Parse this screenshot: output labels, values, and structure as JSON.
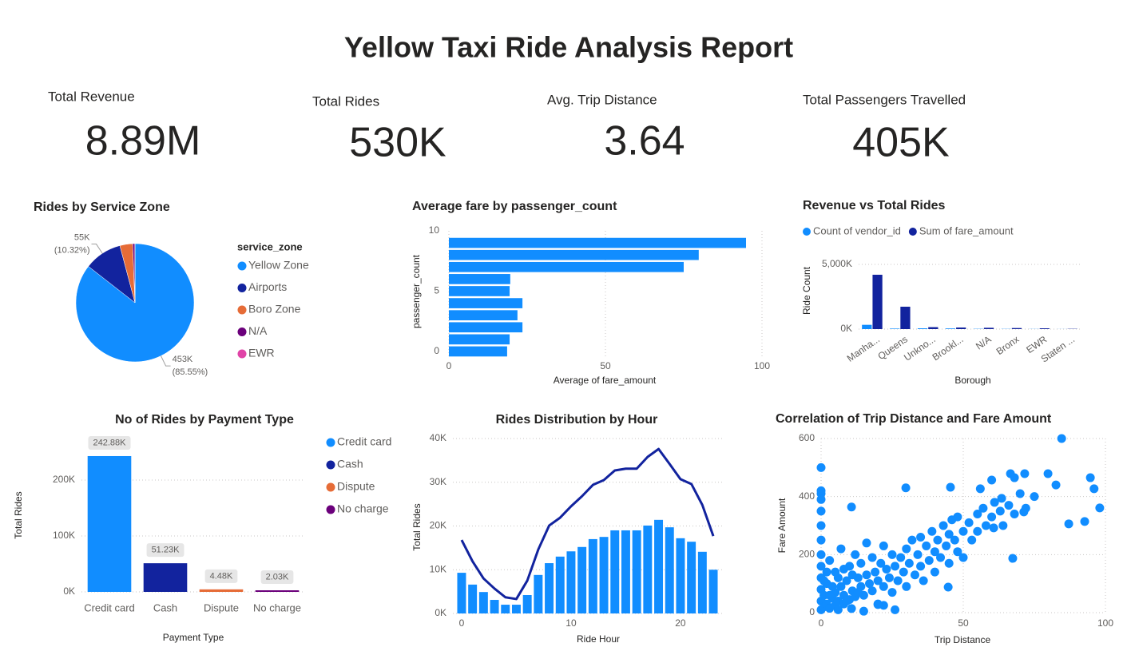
{
  "title": "Yellow Taxi Ride Analysis Report",
  "kpis": [
    {
      "label": "Total Revenue",
      "value": "8.89M"
    },
    {
      "label": "Total Rides",
      "value": "530K"
    },
    {
      "label": "Avg. Trip Distance",
      "value": "3.64"
    },
    {
      "label": "Total Passengers Travelled",
      "value": "405K"
    }
  ],
  "chart_data": [
    {
      "type": "pie",
      "title": "Rides by Service Zone",
      "legend_title": "service_zone",
      "legend": "right",
      "categories": [
        "Yellow Zone",
        "Airports",
        "Boro Zone",
        "N/A",
        "EWR"
      ],
      "values": [
        453000,
        54650,
        18500,
        3200,
        150
      ],
      "value_labels": [
        "453K",
        "55K",
        null,
        null,
        null
      ],
      "percent_labels": [
        "(85.55%)",
        "(10.32%)",
        null,
        null,
        null
      ],
      "colors": [
        "#118dff",
        "#12239e",
        "#e66c37",
        "#6b007b",
        "#e044a7"
      ]
    },
    {
      "type": "hbar",
      "title": "Average fare by passenger_count",
      "xlabel": "Average of fare_amount",
      "ylabel": "passenger_count",
      "categories": [
        0,
        1,
        2,
        3,
        4,
        5,
        6,
        7,
        8,
        9
      ],
      "values": [
        18.6,
        19.4,
        23.5,
        21.9,
        23.5,
        19.4,
        19.6,
        75,
        79.8,
        94.9
      ],
      "color": "#118dff",
      "xlim": [
        0,
        100
      ],
      "xticks": [
        0,
        50,
        100
      ],
      "ylim": [
        -0.5,
        10
      ],
      "yticks": [
        0,
        5,
        10
      ],
      "grid": true
    },
    {
      "type": "grouped_bar",
      "title": "Revenue vs Total Rides",
      "xlabel": "Borough",
      "ylabel": "Ride Count",
      "legend": "top-left",
      "categories": [
        "Manha...",
        "Queens",
        "Unkno...",
        "Brookl...",
        "N/A",
        "Bronx",
        "EWR",
        "Staten ..."
      ],
      "series": [
        {
          "name": "Count of vendor_id",
          "color": "#118dff",
          "values": [
            330000,
            40000,
            60000,
            50000,
            20000,
            15000,
            10000,
            5000
          ]
        },
        {
          "name": "Sum of fare_amount",
          "color": "#12239e",
          "values": [
            4200000,
            1730000,
            150000,
            120000,
            100000,
            80000,
            60000,
            20000
          ]
        }
      ],
      "ylim": [
        0,
        5000000
      ],
      "yticks": [
        {
          "value": 0,
          "label": "0K"
        },
        {
          "value": 5000000,
          "label": "5,000K"
        }
      ],
      "grid": true
    },
    {
      "type": "bar",
      "title": "No of Rides by Payment Type",
      "xlabel": "Payment Type",
      "ylabel": "Total Rides",
      "legend": "right",
      "categories": [
        "Credit card",
        "Cash",
        "Dispute",
        "No charge"
      ],
      "values": [
        242880,
        51230,
        4480,
        2030
      ],
      "value_labels": [
        "242.88K",
        "51.23K",
        "4.48K",
        "2.03K"
      ],
      "colors": [
        "#118dff",
        "#12239e",
        "#e66c37",
        "#6b007b"
      ],
      "ylim": [
        0,
        280000
      ],
      "yticks": [
        {
          "value": 0,
          "label": "0K"
        },
        {
          "value": 100000,
          "label": "100K"
        },
        {
          "value": 200000,
          "label": "200K"
        }
      ],
      "grid": true
    },
    {
      "type": "combo",
      "title": "Rides Distribution by Hour",
      "xlabel": "Ride Hour",
      "ylabel": "Total Rides",
      "x": [
        0,
        1,
        2,
        3,
        4,
        5,
        6,
        7,
        8,
        9,
        10,
        11,
        12,
        13,
        14,
        15,
        16,
        17,
        18,
        19,
        20,
        21,
        22,
        23
      ],
      "series": [
        {
          "kind": "bar",
          "color": "#118dff",
          "values": [
            9300,
            6600,
            4900,
            3100,
            2000,
            2000,
            4200,
            8800,
            11500,
            13000,
            14200,
            15200,
            17000,
            17500,
            19000,
            19000,
            19000,
            20100,
            21400,
            19700,
            17200,
            16400,
            14100,
            10000
          ]
        },
        {
          "kind": "line",
          "color": "#12239e",
          "values": [
            16800,
            11900,
            8000,
            5700,
            3700,
            3300,
            7500,
            14600,
            20100,
            21900,
            24500,
            26800,
            29400,
            30500,
            32700,
            33100,
            33100,
            35800,
            37600,
            34200,
            30700,
            29600,
            24800,
            17700
          ]
        }
      ],
      "xlim": [
        -0.8,
        23.8
      ],
      "xticks": [
        0,
        10,
        20
      ],
      "ylim": [
        0,
        40000
      ],
      "yticks": [
        {
          "value": 0,
          "label": "0K"
        },
        {
          "value": 10000,
          "label": "10K"
        },
        {
          "value": 20000,
          "label": "20K"
        },
        {
          "value": 30000,
          "label": "30K"
        },
        {
          "value": 40000,
          "label": "40K"
        }
      ],
      "grid": true
    },
    {
      "type": "scatter",
      "title": "Correlation of Trip Distance and Fare Amount",
      "xlabel": "Trip Distance",
      "ylabel": "Fare Amount",
      "color": "#118dff",
      "x": [
        0,
        0,
        0,
        0,
        0,
        0,
        0,
        0,
        0,
        0,
        1,
        1,
        2,
        2,
        3,
        3,
        4,
        5,
        5,
        5,
        6,
        7,
        7,
        8,
        8,
        9,
        10,
        10,
        11,
        12,
        12,
        13,
        14,
        14,
        15,
        16,
        16,
        17,
        18,
        18,
        19,
        20,
        20,
        21,
        22,
        22,
        23,
        24,
        25,
        25,
        26,
        27,
        28,
        29,
        30,
        30,
        31,
        32,
        33,
        34,
        35,
        35,
        36,
        37,
        38,
        39,
        40,
        40,
        41,
        42,
        43,
        44,
        45,
        45,
        46,
        47,
        48,
        48,
        50,
        50,
        52,
        53,
        55,
        55,
        57,
        58,
        60,
        61,
        63,
        64,
        66,
        68,
        70,
        72,
        75,
        22,
        26,
        15,
        84.6,
        0,
        45.5,
        56,
        60,
        66.6,
        68,
        71.6,
        79.8,
        82.6,
        94.7,
        96,
        98,
        92.7,
        87.1,
        71.3,
        67.4,
        60.7,
        63.5,
        10.7,
        29.8,
        44.7,
        10.7,
        20,
        0,
        0,
        3,
        4,
        6,
        2,
        8,
        9,
        11,
        13,
        6,
        1
      ],
      "values": [
        10,
        40,
        80,
        120,
        160,
        200,
        250,
        300,
        350,
        410,
        60,
        20,
        30,
        100,
        15,
        180,
        50,
        25,
        70,
        140,
        40,
        90,
        220,
        30,
        60,
        110,
        45,
        160,
        75,
        55,
        200,
        120,
        90,
        170,
        60,
        130,
        240,
        100,
        75,
        190,
        140,
        110,
        30,
        170,
        90,
        230,
        150,
        120,
        200,
        70,
        160,
        110,
        190,
        140,
        220,
        90,
        170,
        250,
        130,
        200,
        160,
        260,
        110,
        230,
        180,
        280,
        210,
        140,
        250,
        190,
        300,
        230,
        170,
        270,
        320,
        250,
        210,
        330,
        280,
        190,
        310,
        250,
        340,
        280,
        360,
        300,
        330,
        380,
        350,
        300,
        370,
        340,
        410,
        360,
        400,
        25,
        10,
        5,
        600,
        500,
        432,
        427,
        457,
        479,
        465,
        479,
        479,
        440,
        465,
        427,
        361,
        314,
        306,
        347,
        187,
        292,
        394,
        364,
        430,
        88,
        14,
        28,
        420,
        390,
        60,
        90,
        120,
        140,
        150,
        40,
        130,
        70,
        10,
        110
      ],
      "xlim": [
        0,
        100
      ],
      "xticks": [
        0,
        50,
        100
      ],
      "ylim": [
        0,
        600
      ],
      "yticks": [
        0,
        200,
        400,
        600
      ],
      "grid": true
    }
  ]
}
